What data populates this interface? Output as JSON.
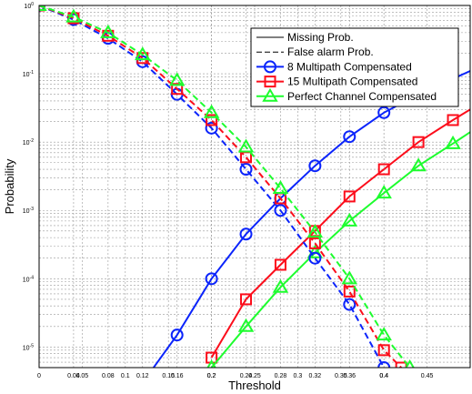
{
  "chart_data": {
    "type": "line",
    "xlabel": "Threshold",
    "ylabel": "Probability",
    "xlim": [
      0,
      0.5
    ],
    "ylim": [
      5e-06,
      1
    ],
    "y_scale": "log",
    "grid": true,
    "legend_position": "top-right",
    "x_ticks": [
      0,
      0.05,
      0.1,
      0.15,
      0.2,
      0.25,
      0.3,
      0.35,
      0.4,
      0.45
    ],
    "x_tick_labels": [
      "0",
      "0.05",
      "0.1",
      "0.15",
      "0.2",
      "0.25",
      "0.3",
      "0.35",
      "0.4",
      "0.45"
    ],
    "x_extra_ticks": [
      0.04,
      0.08,
      0.12,
      0.16,
      0.2,
      0.24,
      0.28,
      0.32,
      0.36,
      0.4
    ],
    "x_extra_tick_labels": [
      "0.04",
      "0.08",
      "0.12",
      "0.16",
      "0.2",
      "0.24",
      "0.28",
      "0.32",
      "0.36",
      "0.4"
    ],
    "y_ticks": [
      1e-05,
      0.0001,
      0.001,
      0.01,
      0.1,
      1
    ],
    "y_tick_labels": [
      {
        "base": "10",
        "exp": "-5"
      },
      {
        "base": "10",
        "exp": "-4"
      },
      {
        "base": "10",
        "exp": "-3"
      },
      {
        "base": "10",
        "exp": "-2"
      },
      {
        "base": "10",
        "exp": "-1"
      },
      {
        "base": "10",
        "exp": "0"
      }
    ],
    "legend_entries": [
      {
        "label": "Missing Prob.",
        "style": "solid",
        "color": "#000000",
        "marker": "none"
      },
      {
        "label": "False alarm Prob.",
        "style": "dashed",
        "color": "#000000",
        "marker": "none"
      },
      {
        "label": "8 Multipath Compensated",
        "style": "solid",
        "color": "#0b24fb",
        "marker": "circle"
      },
      {
        "label": "15 Multipath Compensated",
        "style": "solid",
        "color": "#fc0d1b",
        "marker": "square"
      },
      {
        "label": "Perfect Channel Compensated",
        "style": "solid",
        "color": "#1dfd2e",
        "marker": "triangle"
      }
    ],
    "series": [
      {
        "name": "8 Multipath Compensated",
        "kind": "Missing Prob.",
        "color": "#0b24fb",
        "marker": "circle",
        "dashed": false,
        "x": [
          0.12,
          0.16,
          0.2,
          0.24,
          0.28,
          0.32,
          0.36,
          0.4,
          0.44,
          0.5
        ],
        "y": [
          3e-06,
          1.5e-05,
          0.0001,
          0.00045,
          0.0015,
          0.0045,
          0.012,
          0.027,
          0.05,
          0.11
        ]
      },
      {
        "name": "15 Multipath Compensated",
        "kind": "Missing Prob.",
        "color": "#fc0d1b",
        "marker": "square",
        "dashed": false,
        "x": [
          0.2,
          0.24,
          0.28,
          0.32,
          0.36,
          0.4,
          0.44,
          0.48,
          0.5
        ],
        "y": [
          7e-06,
          5e-05,
          0.00016,
          0.0005,
          0.0016,
          0.004,
          0.01,
          0.021,
          0.03
        ]
      },
      {
        "name": "Perfect Channel Compensated",
        "kind": "Missing Prob.",
        "color": "#1dfd2e",
        "marker": "triangle",
        "dashed": false,
        "x": [
          0.2,
          0.24,
          0.28,
          0.32,
          0.36,
          0.4,
          0.44,
          0.48,
          0.5
        ],
        "y": [
          5e-06,
          2e-05,
          7.5e-05,
          0.00024,
          0.0007,
          0.0018,
          0.0045,
          0.0095,
          0.014
        ]
      },
      {
        "name": "8 Multipath Compensated",
        "kind": "False alarm Prob.",
        "color": "#0b24fb",
        "marker": "circle",
        "dashed": true,
        "x": [
          0,
          0.04,
          0.08,
          0.12,
          0.16,
          0.2,
          0.24,
          0.28,
          0.32,
          0.36,
          0.4
        ],
        "y": [
          1,
          0.62,
          0.33,
          0.15,
          0.05,
          0.016,
          0.004,
          0.001,
          0.0002,
          4.2e-05,
          5e-06
        ]
      },
      {
        "name": "15 Multipath Compensated",
        "kind": "False alarm Prob.",
        "color": "#fc0d1b",
        "marker": "square",
        "dashed": true,
        "x": [
          0,
          0.04,
          0.08,
          0.12,
          0.16,
          0.2,
          0.24,
          0.28,
          0.32,
          0.36,
          0.4,
          0.42
        ],
        "y": [
          1,
          0.65,
          0.36,
          0.17,
          0.06,
          0.021,
          0.006,
          0.0015,
          0.00033,
          6.5e-05,
          9e-06,
          5e-06
        ]
      },
      {
        "name": "Perfect Channel Compensated",
        "kind": "False alarm Prob.",
        "color": "#1dfd2e",
        "marker": "triangle",
        "dashed": true,
        "x": [
          0,
          0.04,
          0.08,
          0.12,
          0.16,
          0.2,
          0.24,
          0.28,
          0.32,
          0.36,
          0.4,
          0.43
        ],
        "y": [
          1,
          0.68,
          0.4,
          0.19,
          0.08,
          0.027,
          0.0085,
          0.0021,
          0.00048,
          0.0001,
          1.5e-05,
          5e-06
        ]
      }
    ]
  }
}
